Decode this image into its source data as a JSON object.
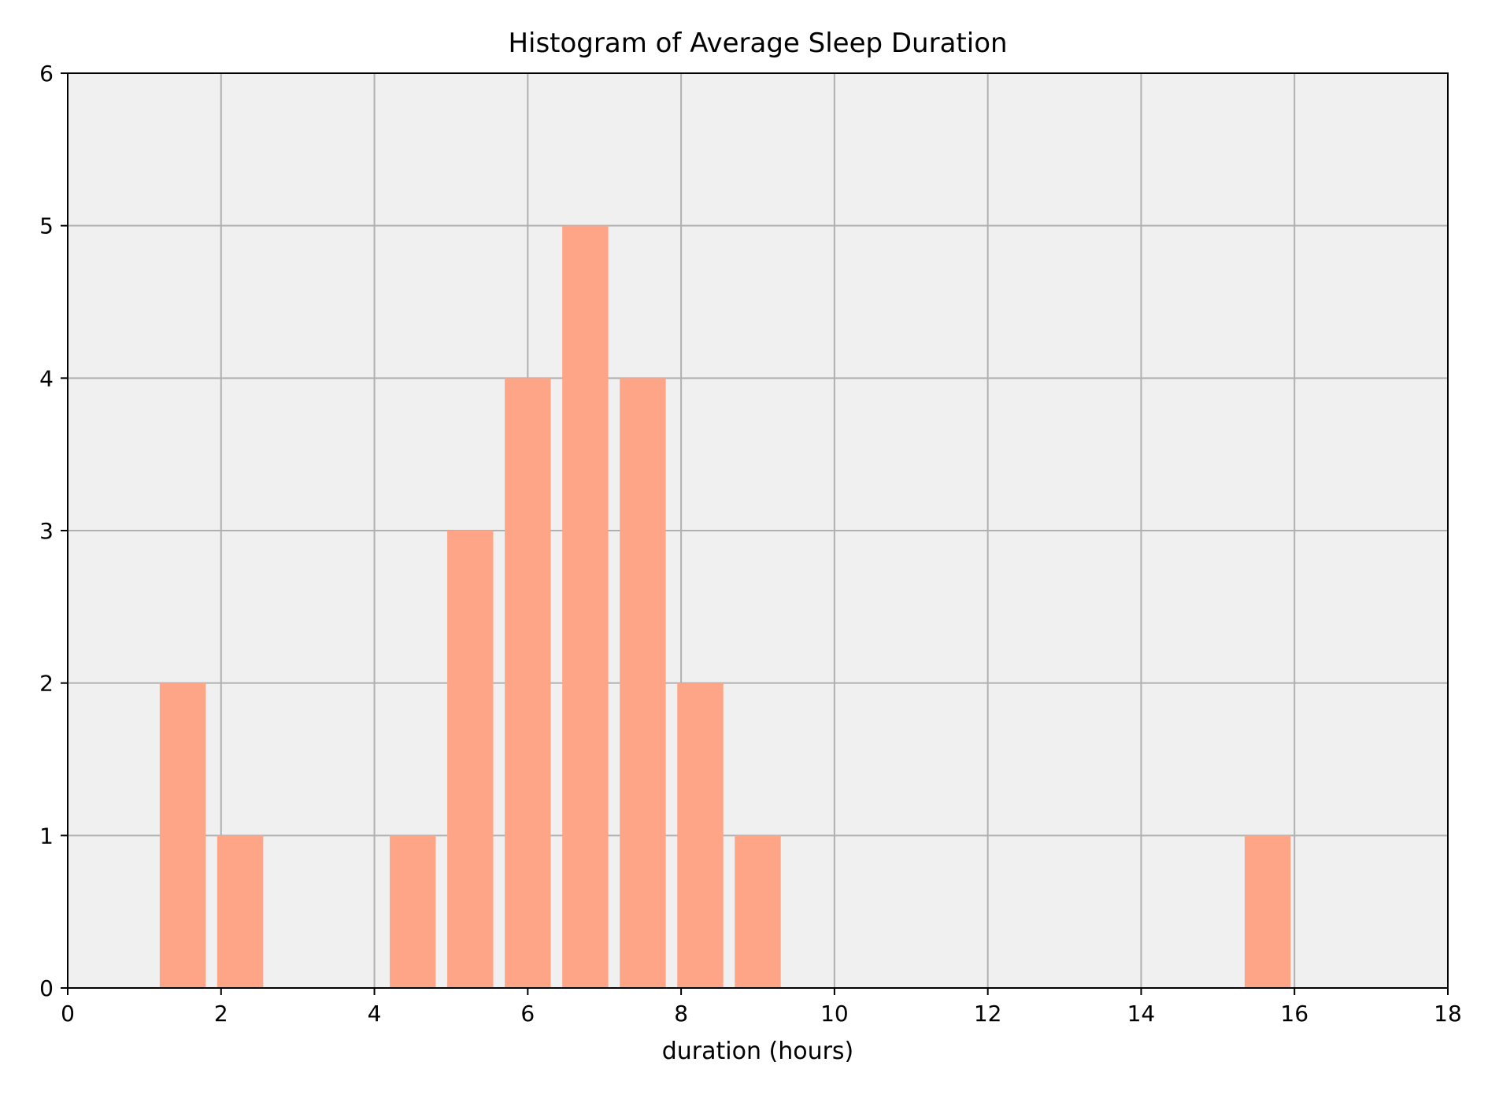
{
  "chart_data": {
    "type": "bar",
    "title": "Histogram of Average Sleep Duration",
    "xlabel": "duration (hours)",
    "ylabel": "",
    "xlim": [
      0,
      18
    ],
    "ylim": [
      0,
      6
    ],
    "xticks": [
      "0",
      "2",
      "4",
      "6",
      "8",
      "10",
      "12",
      "14",
      "16",
      "18"
    ],
    "yticks": [
      "0",
      "1",
      "2",
      "3",
      "4",
      "5",
      "6"
    ],
    "grid": true,
    "bins": [
      {
        "x0": 1.2,
        "x1": 1.8,
        "count": 2
      },
      {
        "x0": 1.95,
        "x1": 2.55,
        "count": 1
      },
      {
        "x0": 4.2,
        "x1": 4.8,
        "count": 1
      },
      {
        "x0": 4.95,
        "x1": 5.55,
        "count": 3
      },
      {
        "x0": 5.7,
        "x1": 6.3,
        "count": 4
      },
      {
        "x0": 6.45,
        "x1": 7.05,
        "count": 5
      },
      {
        "x0": 7.2,
        "x1": 7.8,
        "count": 4
      },
      {
        "x0": 7.95,
        "x1": 8.55,
        "count": 2
      },
      {
        "x0": 8.7,
        "x1": 9.3,
        "count": 1
      },
      {
        "x0": 15.35,
        "x1": 15.95,
        "count": 1
      }
    ],
    "colors": {
      "bar": "#FFA587",
      "plot_background": "#F0F0F0",
      "grid": "#B0B0B0",
      "axis": "#000000"
    }
  }
}
